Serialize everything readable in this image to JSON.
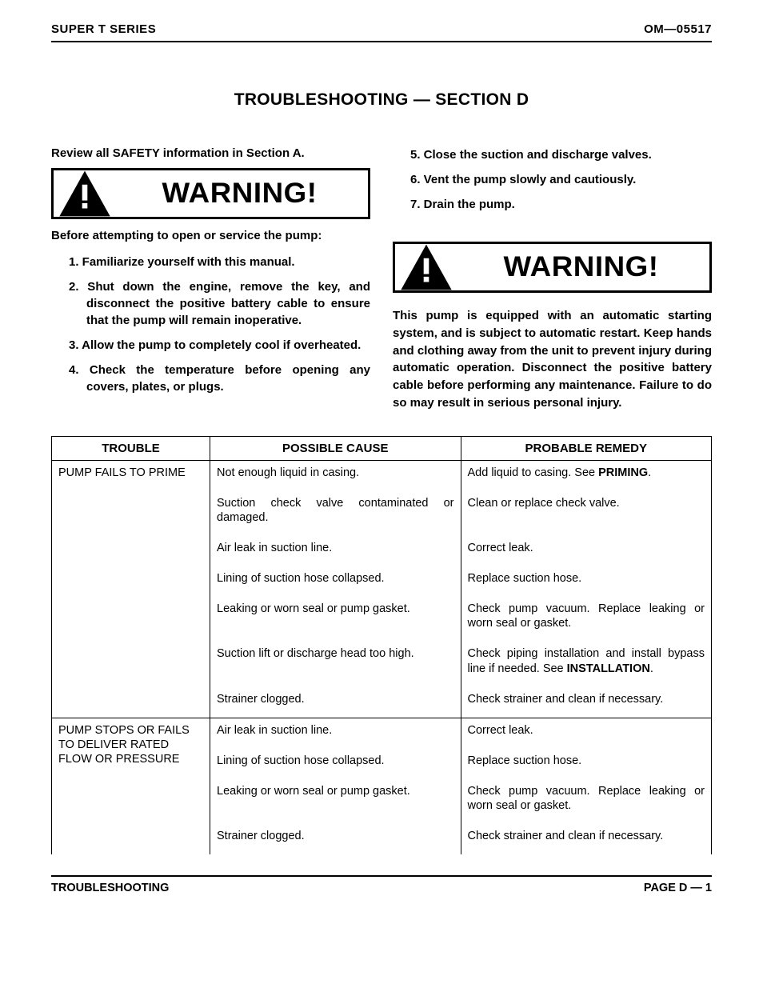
{
  "header": {
    "left": "SUPER T SERIES",
    "right": "OM—05517"
  },
  "section_title": "TROUBLESHOOTING — SECTION D",
  "intro": "Review all SAFETY information in Section A.",
  "warning_label": "WARNING!",
  "before_text": "Before attempting to open or service the pump:",
  "steps_left": [
    "Familiarize yourself with this manual.",
    "Shut down the engine, remove the key, and disconnect the positive battery cable to ensure that the pump will remain inoperative.",
    "Allow the pump to completely cool if overheated.",
    "Check the temperature before opening any covers, plates, or plugs."
  ],
  "steps_right": [
    "Close the suction and discharge valves.",
    "Vent the pump slowly and cautiously.",
    "Drain the pump."
  ],
  "auto_warning_text": "This pump is equipped with an automatic starting system, and is subject to automatic restart. Keep hands and clothing away from the unit to prevent injury during automatic operation. Disconnect the positive battery cable before performing any maintenance. Failure to do so may result in serious personal injury.",
  "table": {
    "headers": [
      "TROUBLE",
      "POSSIBLE CAUSE",
      "PROBABLE REMEDY"
    ],
    "col_widths_pct": [
      24,
      38,
      38
    ],
    "groups": [
      {
        "trouble": "PUMP FAILS TO PRIME",
        "rows": [
          {
            "cause": "Not enough liquid in casing.",
            "remedy_html": "Add liquid to casing. See <b class=\"inline\">PRIMING</b>."
          },
          {
            "cause": "Suction check valve contaminated or damaged.",
            "remedy_html": "Clean or replace check valve."
          },
          {
            "cause": "Air leak in suction line.",
            "remedy_html": "Correct leak."
          },
          {
            "cause": "Lining of suction hose collapsed.",
            "remedy_html": "Replace suction hose."
          },
          {
            "cause": "Leaking or worn seal or pump gasket.",
            "remedy_html": "Check pump vacuum. Replace leaking or worn seal or gasket."
          },
          {
            "cause": "Suction lift or discharge head too high.",
            "remedy_html": "Check piping installation and install bypass line if needed. See <b class=\"inline\">INSTALLATION</b>."
          },
          {
            "cause": "Strainer clogged.",
            "remedy_html": "Check strainer and clean if necessary."
          }
        ]
      },
      {
        "trouble": "PUMP STOPS OR FAILS TO DELIVER RATED FLOW OR PRESSURE",
        "rows": [
          {
            "cause": "Air leak in suction line.",
            "remedy_html": "Correct leak."
          },
          {
            "cause": "Lining of suction hose collapsed.",
            "remedy_html": "Replace suction hose."
          },
          {
            "cause": "Leaking or worn seal or pump gasket.",
            "remedy_html": "Check pump vacuum. Replace leaking or worn seal or gasket."
          },
          {
            "cause": "Strainer clogged.",
            "remedy_html": "Check strainer and clean if necessary."
          }
        ]
      }
    ]
  },
  "footer": {
    "left": "TROUBLESHOOTING",
    "right": "PAGE D — 1"
  },
  "colors": {
    "text": "#000000",
    "background": "#ffffff",
    "rule": "#000000"
  },
  "typography": {
    "base_font": "Arial, Helvetica, sans-serif",
    "title_size_pt": 16,
    "body_size_pt": 11,
    "warning_size_pt": 26
  }
}
